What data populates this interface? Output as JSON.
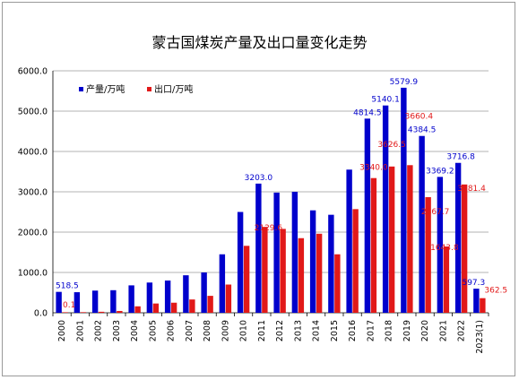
{
  "chart_data": {
    "type": "bar",
    "title": "蒙古国煤炭产量及出口量变化走势",
    "xlabel": "",
    "ylabel": "",
    "ylim": [
      0,
      6000
    ],
    "yticks": [
      "0.0",
      "1000.0",
      "2000.0",
      "3000.0",
      "4000.0",
      "5000.0",
      "6000.0"
    ],
    "grid": true,
    "legend_position": "top-left",
    "categories": [
      "2000",
      "2001",
      "2002",
      "2003",
      "2004",
      "2005",
      "2006",
      "2007",
      "2008",
      "2009",
      "2010",
      "2011",
      "2012",
      "2013",
      "2014",
      "2015",
      "2016",
      "2017",
      "2018",
      "2019",
      "2020",
      "2021",
      "2022",
      "2023(1)"
    ],
    "series": [
      {
        "name": "产量/万吨",
        "color": "#0000cc",
        "values": [
          518.5,
          510,
          550,
          560,
          680,
          750,
          800,
          930,
          1000,
          1450,
          2500,
          3203.0,
          2980,
          3000,
          2540,
          2430,
          3550,
          4814.5,
          5140.1,
          5579.9,
          4384.5,
          3369.2,
          3716.8,
          597.3
        ],
        "labels": {
          "0": "518.5",
          "11": "3203.0",
          "17": "4814.5",
          "18": "5140.1",
          "19": "5579.9",
          "20": "4384.5",
          "21": "3369.2",
          "22": "3716.8",
          "23": "597.3"
        }
      },
      {
        "name": "出口/万吨",
        "color": "#e11919",
        "values": [
          0.1,
          15,
          25,
          45,
          160,
          230,
          250,
          330,
          420,
          700,
          1660,
          2129.6,
          2080,
          1850,
          1960,
          1450,
          2570,
          3340.0,
          3626.5,
          3660.4,
          2867.7,
          1643.8,
          3181.4,
          362.5
        ],
        "labels": {
          "0": "0.1",
          "11": "2129.6",
          "17": "3340.0",
          "18": "3626.5",
          "19": "3660.4",
          "20": "2867.7",
          "21": "1643.8",
          "22": "3181.4",
          "23": "362.5"
        }
      }
    ]
  }
}
